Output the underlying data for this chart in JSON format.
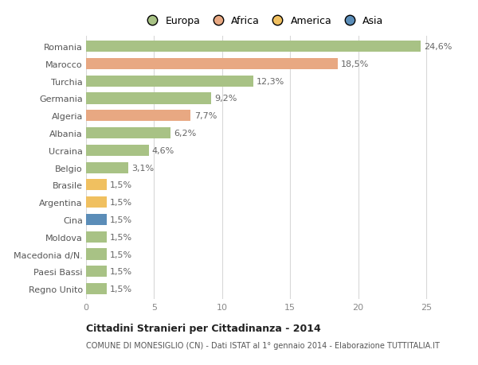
{
  "countries": [
    "Romania",
    "Marocco",
    "Turchia",
    "Germania",
    "Algeria",
    "Albania",
    "Ucraina",
    "Belgio",
    "Brasile",
    "Argentina",
    "Cina",
    "Moldova",
    "Macedonia d/N.",
    "Paesi Bassi",
    "Regno Unito"
  ],
  "values": [
    24.6,
    18.5,
    12.3,
    9.2,
    7.7,
    6.2,
    4.6,
    3.1,
    1.5,
    1.5,
    1.5,
    1.5,
    1.5,
    1.5,
    1.5
  ],
  "labels": [
    "24,6%",
    "18,5%",
    "12,3%",
    "9,2%",
    "7,7%",
    "6,2%",
    "4,6%",
    "3,1%",
    "1,5%",
    "1,5%",
    "1,5%",
    "1,5%",
    "1,5%",
    "1,5%",
    "1,5%"
  ],
  "continents": [
    "Europa",
    "Africa",
    "Europa",
    "Europa",
    "Africa",
    "Europa",
    "Europa",
    "Europa",
    "America",
    "America",
    "Asia",
    "Europa",
    "Europa",
    "Europa",
    "Europa"
  ],
  "colors": {
    "Europa": "#a8c285",
    "Africa": "#e8a882",
    "America": "#f0c060",
    "Asia": "#5b8db8"
  },
  "legend_order": [
    "Europa",
    "Africa",
    "America",
    "Asia"
  ],
  "legend_colors": [
    "#a8c285",
    "#e8a882",
    "#f0c060",
    "#5b8db8"
  ],
  "title": "Cittadini Stranieri per Cittadinanza - 2014",
  "subtitle": "COMUNE DI MONESIGLIO (CN) - Dati ISTAT al 1° gennaio 2014 - Elaborazione TUTTITALIA.IT",
  "xlim": [
    0,
    26
  ],
  "xticks": [
    0,
    5,
    10,
    15,
    20,
    25
  ],
  "bg_color": "#ffffff",
  "grid_color": "#d8d8d8",
  "bar_height": 0.65,
  "label_fontsize": 8,
  "tick_fontsize": 8,
  "country_fontsize": 8
}
